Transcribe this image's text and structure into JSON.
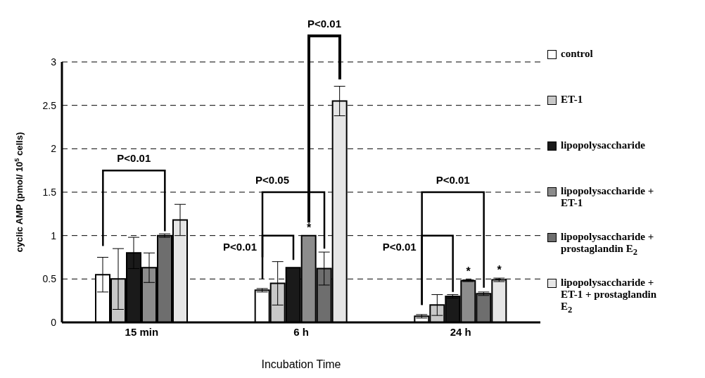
{
  "chart_data": {
    "type": "bar",
    "xlabel": "Incubation Time",
    "ylabel": "cyclic AMP (pmol/ 10$^{5}$ cells)",
    "categories": [
      "15 min",
      "6 h",
      "24 h"
    ],
    "series": [
      {
        "name": "control",
        "color": "#ffffff",
        "values": [
          0.55,
          0.37,
          0.07
        ],
        "errors": [
          0.2,
          0.02,
          0.02
        ]
      },
      {
        "name": "ET-1",
        "color": "#c8c8c8",
        "values": [
          0.5,
          0.45,
          0.2
        ],
        "errors": [
          0.35,
          0.25,
          0.12
        ]
      },
      {
        "name": "lipopolysaccharide",
        "color": "#1a1a1a",
        "values": [
          0.8,
          0.63,
          0.3
        ],
        "errors": [
          0.18,
          null,
          0.02
        ]
      },
      {
        "name": "lipopolysaccharide + ET-1",
        "color": "#8c8c8c",
        "values": [
          0.63,
          1.0,
          0.48
        ],
        "errors": [
          0.17,
          null,
          0.01
        ]
      },
      {
        "name": "lipopolysaccharide + prostaglandin E$_{2}$",
        "color": "#6e6e6e",
        "values": [
          1.0,
          0.62,
          0.33
        ],
        "errors": [
          0.02,
          0.19,
          0.02
        ]
      },
      {
        "name": "lipopolysaccharide + ET-1 + prostaglandin E$_{2}$",
        "color": "#e6e6e6",
        "values": [
          1.18,
          2.55,
          0.49
        ],
        "errors": [
          0.18,
          0.17,
          0.02
        ]
      }
    ],
    "ylim": [
      0,
      3
    ],
    "yticks": [
      0,
      0.5,
      1,
      1.5,
      2,
      2.5,
      3
    ],
    "grid": "y",
    "legend": "right",
    "annotations": [
      "P<0.01",
      "P<0.01",
      "P<0.05",
      "P<0.01",
      "P<0.01",
      "P<0.01",
      "*",
      "*",
      "*"
    ]
  }
}
